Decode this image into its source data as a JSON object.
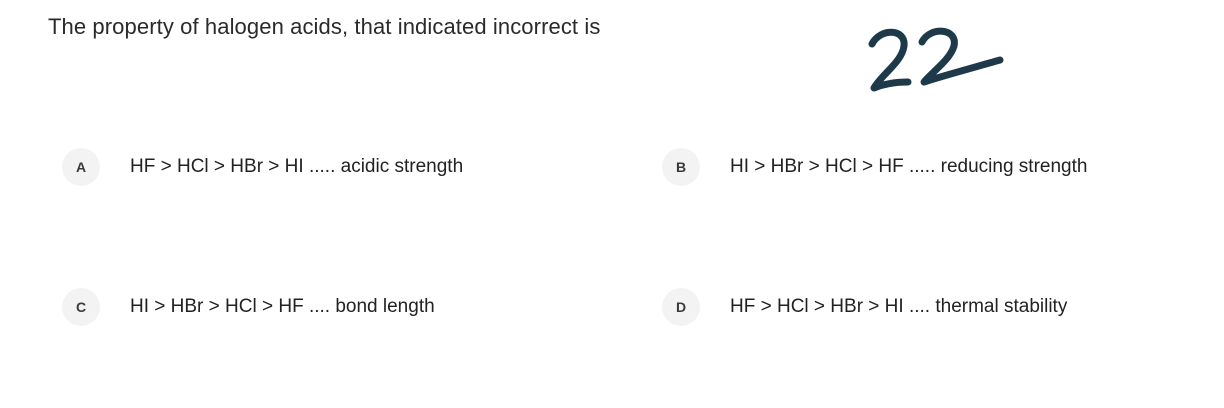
{
  "question": {
    "text": "The property of halogen acids, that indicated incorrect is",
    "annotation": "22"
  },
  "options": [
    {
      "letter": "A",
      "text": "HF > HCl > HBr > HI ..... acidic strength"
    },
    {
      "letter": "B",
      "text": "HI > HBr > HCl > HF ..... reducing strength"
    },
    {
      "letter": "C",
      "text": "HI > HBr > HCl > HF .... bond length"
    },
    {
      "letter": "D",
      "text": "HF > HCl > HBr > HI .... thermal stability"
    }
  ],
  "colors": {
    "annotation_ink": "#1e3a4a",
    "letter_badge_bg": "#f3f3f3",
    "text": "#222222"
  }
}
